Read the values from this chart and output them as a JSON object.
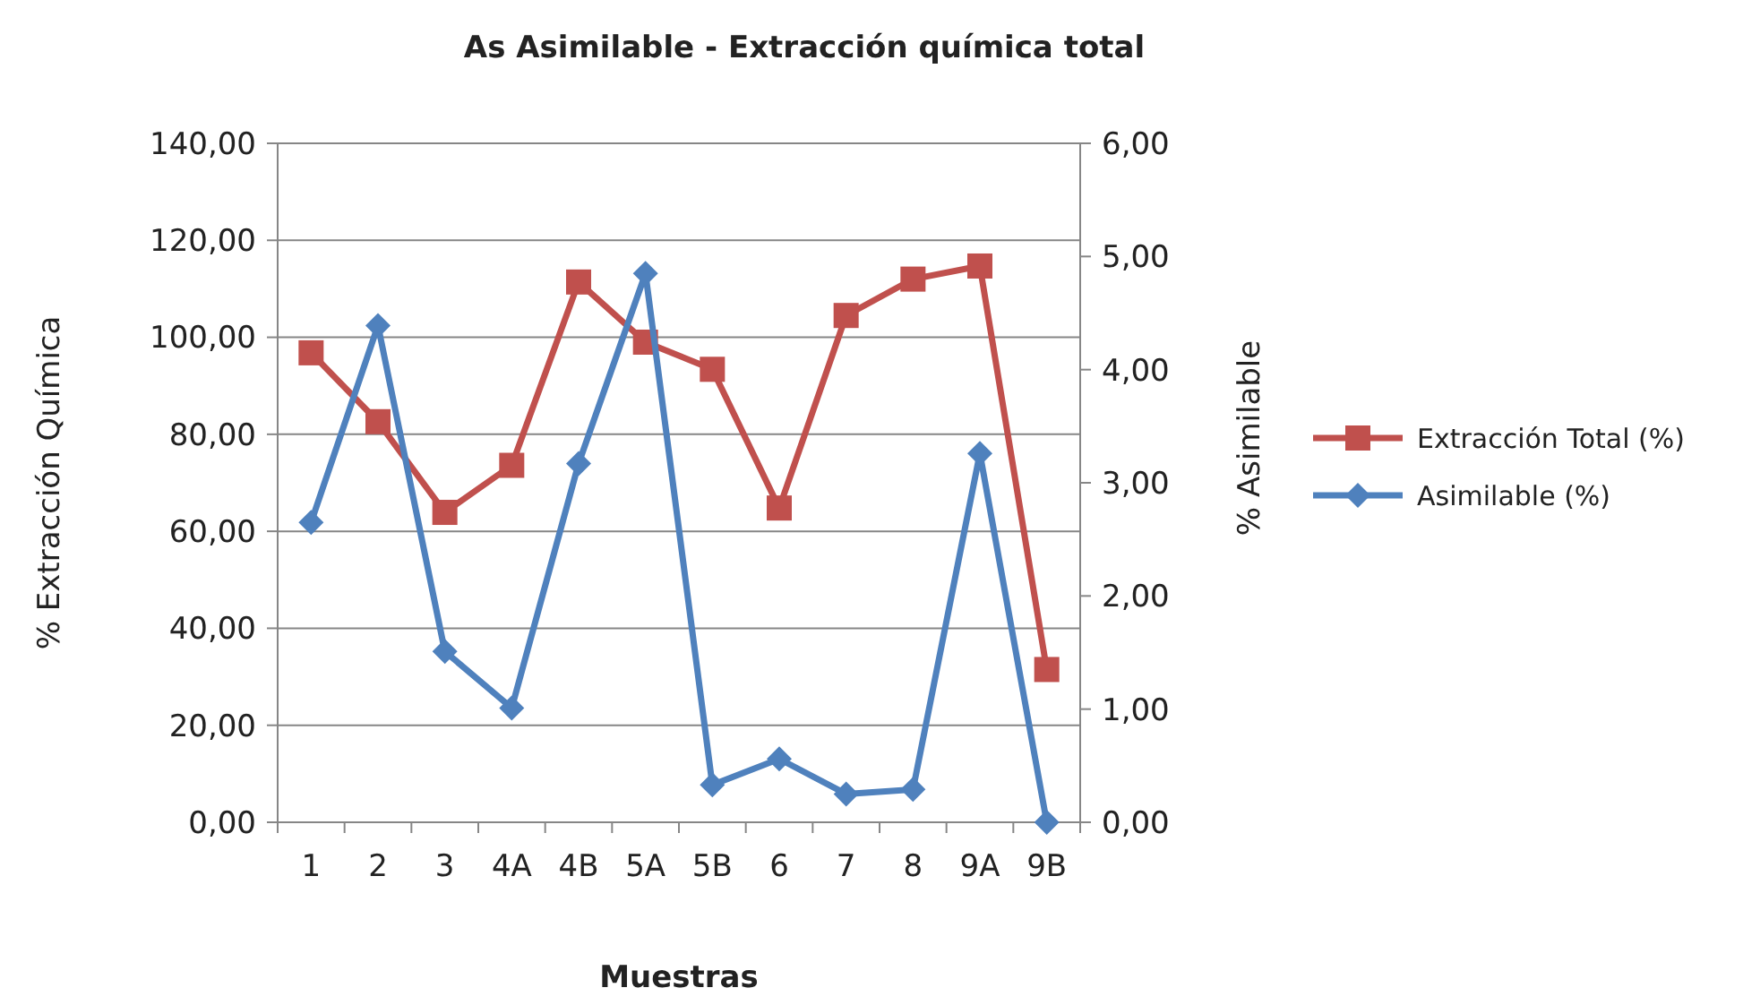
{
  "chart_data": {
    "type": "line",
    "title": "As Asimilable  - Extracción  química total",
    "xlabel": "Muestras",
    "ylabel": "% Extracción Química",
    "y2label": "% Asimilable",
    "categories": [
      "1",
      "2",
      "3",
      "4A",
      "4B",
      "5A",
      "5B",
      "6",
      "7",
      "8",
      "9A",
      "9B"
    ],
    "series": [
      {
        "name": "Extracción Total (%)",
        "color": "#c0504d",
        "marker": "square",
        "values": [
          96.8,
          82.6,
          63.9,
          73.6,
          111.4,
          99.0,
          93.4,
          64.8,
          104.5,
          112.0,
          114.7,
          31.5
        ]
      },
      {
        "name": "Asimilable (%)",
        "color": "#4f81bd",
        "marker": "diamond",
        "axis": "y2",
        "values": [
          2.65,
          4.39,
          1.51,
          1.01,
          3.17,
          4.85,
          0.33,
          0.56,
          0.25,
          0.29,
          3.26,
          0.0
        ]
      }
    ],
    "ylim": [
      0,
      140
    ],
    "yticks": [
      {
        "value": 0,
        "label": "0,00"
      },
      {
        "value": 20,
        "label": "20,00"
      },
      {
        "value": 40,
        "label": "40,00"
      },
      {
        "value": 60,
        "label": "60,00"
      },
      {
        "value": 80,
        "label": "80,00"
      },
      {
        "value": 100,
        "label": "100,00"
      },
      {
        "value": 120,
        "label": "120,00"
      },
      {
        "value": 140,
        "label": "140,00"
      }
    ],
    "y2lim": [
      0,
      6
    ],
    "y2ticks": [
      {
        "value": 0,
        "label": "0,00"
      },
      {
        "value": 1,
        "label": "1,00"
      },
      {
        "value": 2,
        "label": "2,00"
      },
      {
        "value": 3,
        "label": "3,00"
      },
      {
        "value": 4,
        "label": "4,00"
      },
      {
        "value": 5,
        "label": "5,00"
      },
      {
        "value": 6,
        "label": "6,00"
      }
    ],
    "grid": "y",
    "legend": "right",
    "line_style": "solid"
  }
}
